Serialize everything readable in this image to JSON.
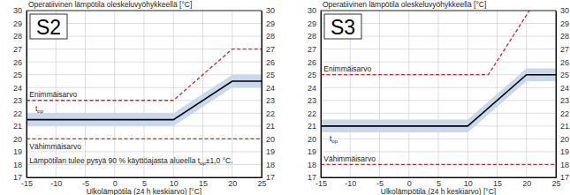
{
  "chart_data": [
    {
      "type": "line",
      "title": "S2",
      "ylabel": "Operatiivinen lämpötila oleskeluvyöhykkeellä [°C]",
      "xlabel": "Ulkolämpötila (24 h keskiarvo) [°C]",
      "xlim": [
        -15,
        25
      ],
      "ylim": [
        17,
        30
      ],
      "xticks": [
        -15,
        -10,
        -5,
        0,
        5,
        10,
        15,
        20,
        25
      ],
      "yticks": [
        17,
        18,
        19,
        20,
        21,
        22,
        23,
        24,
        25,
        26,
        27,
        28,
        29,
        30
      ],
      "grid": true,
      "series": [
        {
          "color": "#d8232a",
          "line_style": "dashed",
          "x": [
            -15,
            10,
            20,
            25
          ],
          "values": [
            23,
            23,
            27,
            27
          ]
        },
        {
          "color": "#000000",
          "line_style": "solid",
          "x": [
            -15,
            10,
            20,
            25
          ],
          "values": [
            21.5,
            21.5,
            24.5,
            24.5
          ],
          "error": [
            0.5,
            0.5,
            0.5,
            0.5
          ]
        },
        {
          "color": "#d8232a",
          "line_style": "dashed",
          "x": [
            -15,
            25
          ],
          "values": [
            20,
            20
          ]
        }
      ],
      "annotations": [
        {
          "text": "Enimmäisarvo",
          "x": -14.5,
          "y": 23.25
        },
        {
          "parts": [
            {
              "text": "t"
            },
            {
              "text": "op",
              "sub": true
            }
          ],
          "x": -13.5,
          "y": 22.15
        },
        {
          "text": "Vähimmäisarvo",
          "x": -14.5,
          "y": 19.2
        },
        {
          "parts": [
            {
              "text": "Lämpötilan tulee pysyä 90 % käyttöajasta alueella t"
            },
            {
              "text": "op",
              "sub": true
            },
            {
              "text": "±1,0 °C."
            }
          ],
          "x": -14.5,
          "y": 18.1
        }
      ]
    },
    {
      "type": "line",
      "title": "S3",
      "ylabel": "Operatiivinen lämpötila oleskeluvyöhykkeellä [°C]",
      "xlabel": "Ulkolämpötila (24 h keskiarvo) [°C]",
      "xlim": [
        -15,
        25
      ],
      "ylim": [
        17,
        30
      ],
      "xticks": [
        -15,
        -10,
        -5,
        0,
        5,
        10,
        15,
        20,
        25
      ],
      "yticks": [
        17,
        18,
        19,
        20,
        21,
        22,
        23,
        24,
        25,
        26,
        27,
        28,
        29,
        30
      ],
      "grid": true,
      "series": [
        {
          "color": "#d8232a",
          "line_style": "dashed",
          "x": [
            -15,
            13.5,
            20.5
          ],
          "values": [
            25,
            25,
            30
          ]
        },
        {
          "color": "#000000",
          "line_style": "solid",
          "x": [
            -15,
            10,
            20,
            25
          ],
          "values": [
            21,
            21,
            25,
            25
          ],
          "error": [
            0.5,
            0.5,
            0.5,
            0.5
          ]
        },
        {
          "color": "#d8232a",
          "line_style": "dashed",
          "x": [
            -15,
            25
          ],
          "values": [
            18,
            18
          ]
        }
      ],
      "annotations": [
        {
          "text": "Enimmäisarvo",
          "x": -14.5,
          "y": 25.25
        },
        {
          "parts": [
            {
              "text": "t"
            },
            {
              "text": "op",
              "sub": true
            }
          ],
          "x": -13.5,
          "y": 19.8
        },
        {
          "text": "Vähimmäisarvo",
          "x": -14.5,
          "y": 18.25
        }
      ]
    }
  ]
}
